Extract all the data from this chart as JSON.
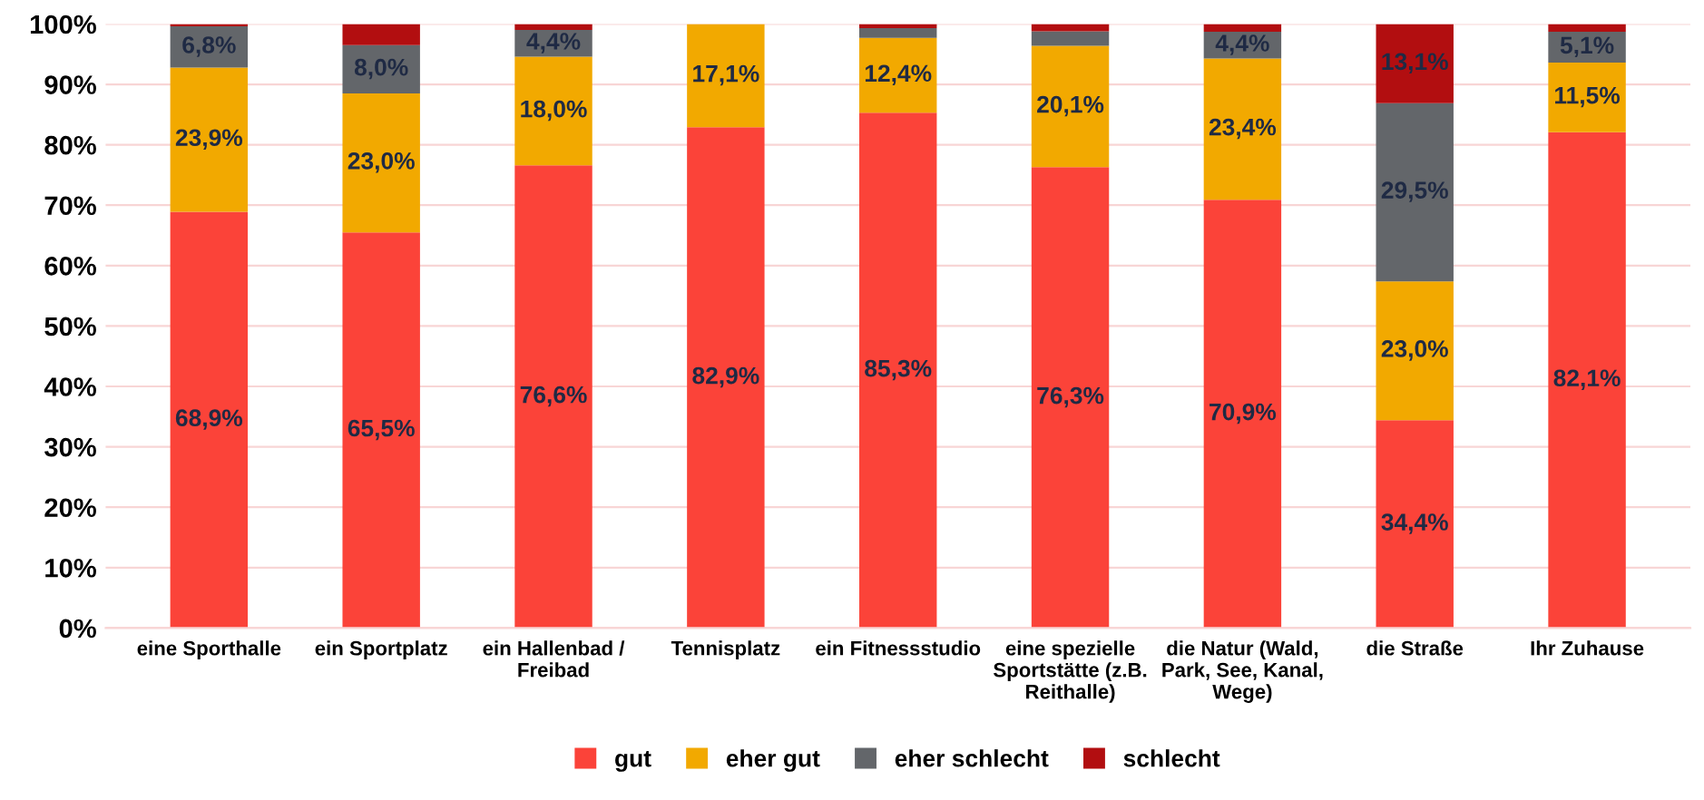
{
  "chart_data": {
    "type": "bar",
    "stacked": true,
    "categories": [
      "eine Sporthalle",
      "ein Sportplatz",
      "ein Hallenbad /\nFreibad",
      "Tennisplatz",
      "ein Fitnessstudio",
      "eine spezielle\nSportstätte (z.B.\nReithalle)",
      "die Natur (Wald,\nPark, See, Kanal,\nWege)",
      "die Straße",
      "Ihr Zuhause"
    ],
    "series": [
      {
        "name": "gut",
        "color": "#fb4339",
        "values": [
          68.9,
          65.5,
          76.6,
          82.9,
          85.3,
          76.3,
          70.9,
          34.4,
          82.1
        ],
        "value_labels": [
          "68,9%",
          "65,5%",
          "76,6%",
          "82,9%",
          "85,3%",
          "76,3%",
          "70,9%",
          "34,4%",
          "82,1%"
        ]
      },
      {
        "name": "eher gut",
        "color": "#f2a900",
        "values": [
          23.9,
          23.0,
          18.0,
          17.1,
          12.4,
          20.1,
          23.4,
          23.0,
          11.5
        ],
        "value_labels": [
          "23,9%",
          "23,0%",
          "18,0%",
          "17,1%",
          "12,4%",
          "20,1%",
          "23,4%",
          "23,0%",
          "11,5%"
        ]
      },
      {
        "name": "eher schlecht",
        "color": "#63666a",
        "values": [
          6.8,
          8.0,
          4.4,
          0,
          1.6,
          2.4,
          4.4,
          29.5,
          5.1
        ],
        "value_labels": [
          "6,8%",
          "8,0%",
          "4,4%",
          null,
          null,
          null,
          "4,4%",
          "29,5%",
          "5,1%"
        ]
      },
      {
        "name": "schlecht",
        "color": "#b20e10",
        "values": [
          0.4,
          3.5,
          1.0,
          0,
          0.7,
          1.2,
          1.3,
          13.1,
          1.3
        ],
        "value_labels": [
          null,
          null,
          null,
          null,
          null,
          null,
          null,
          "13,1%",
          null
        ]
      }
    ],
    "ylim": [
      0,
      100
    ],
    "yticks": [
      {
        "value": 0,
        "label": "0%"
      },
      {
        "value": 10,
        "label": "10%"
      },
      {
        "value": 20,
        "label": "20%"
      },
      {
        "value": 30,
        "label": "30%"
      },
      {
        "value": 40,
        "label": "40%"
      },
      {
        "value": 50,
        "label": "50%"
      },
      {
        "value": 60,
        "label": "60%"
      },
      {
        "value": 70,
        "label": "70%"
      },
      {
        "value": 80,
        "label": "80%"
      },
      {
        "value": 90,
        "label": "90%"
      },
      {
        "value": 100,
        "label": "100%"
      }
    ],
    "grid": "y",
    "legend": "bottom"
  }
}
